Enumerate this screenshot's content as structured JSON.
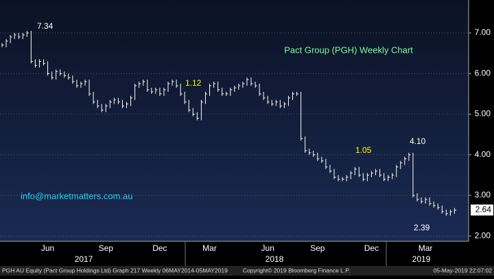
{
  "chart_data": {
    "type": "price-bars",
    "title": "Pact Group (PGH) Weekly Chart",
    "watermark": "info@marketmatters.com.au",
    "categories": [
      null,
      null,
      null,
      null,
      null,
      null,
      null,
      null,
      null,
      null,
      null,
      "Jun",
      null,
      null,
      null,
      null,
      null,
      null,
      null,
      null,
      null,
      null,
      null,
      null,
      null,
      "Sep",
      null,
      null,
      null,
      null,
      null,
      null,
      null,
      null,
      null,
      null,
      null,
      null,
      "Dec",
      null,
      null,
      null,
      null,
      null,
      null,
      null,
      null,
      null,
      null,
      null,
      "Mar",
      null,
      null,
      null,
      null,
      null,
      null,
      null,
      null,
      null,
      null,
      null,
      null,
      null,
      "Jun",
      null,
      null,
      null,
      null,
      null,
      null,
      null,
      null,
      null,
      null,
      null,
      "Sep",
      null,
      null,
      null,
      null,
      null,
      null,
      null,
      null,
      null,
      null,
      null,
      null,
      "Dec",
      null,
      null,
      null,
      null,
      null,
      null,
      null,
      null,
      null,
      null,
      null,
      null,
      "Mar",
      null,
      null,
      null,
      null,
      null,
      null,
      null
    ],
    "years": [
      "2017",
      "2018",
      "2019"
    ],
    "values": [
      6.7,
      6.8,
      6.9,
      6.95,
      6.9,
      6.95,
      7.0,
      6.3,
      6.2,
      6.3,
      6.25,
      6.0,
      5.9,
      6.05,
      6.0,
      5.95,
      5.9,
      5.8,
      5.7,
      5.75,
      5.8,
      5.5,
      5.3,
      5.2,
      5.1,
      5.2,
      5.3,
      5.35,
      5.3,
      5.2,
      5.25,
      5.4,
      5.7,
      5.75,
      5.8,
      5.6,
      5.55,
      5.6,
      5.5,
      5.6,
      5.75,
      5.8,
      5.7,
      5.5,
      5.3,
      5.1,
      5.0,
      4.9,
      5.3,
      5.5,
      5.7,
      5.75,
      5.6,
      5.5,
      5.5,
      5.6,
      5.65,
      5.7,
      5.75,
      5.85,
      5.75,
      5.7,
      5.5,
      5.4,
      5.3,
      5.25,
      5.3,
      5.2,
      5.25,
      5.4,
      5.5,
      5.5,
      4.4,
      4.1,
      4.05,
      4.0,
      3.9,
      3.85,
      3.7,
      3.6,
      3.45,
      3.4,
      3.4,
      3.45,
      3.55,
      3.65,
      3.5,
      3.4,
      3.5,
      3.55,
      3.6,
      3.5,
      3.4,
      3.45,
      3.5,
      3.7,
      3.8,
      3.9,
      4.0,
      3.0,
      2.9,
      2.85,
      2.9,
      2.8,
      2.75,
      2.7,
      2.6,
      2.55,
      2.6,
      2.64
    ],
    "color": "#ffffff",
    "last_price": {
      "value": 2.64,
      "label": "2.64"
    },
    "annotations": [
      {
        "text": "7.34",
        "color": "#ffffff"
      },
      {
        "text": "1.12",
        "color": "#ffff00"
      },
      {
        "text": "1.05",
        "color": "#ffff00"
      },
      {
        "text": "4.10",
        "color": "#ffffff"
      },
      {
        "text": "2.39",
        "color": "#ffffff"
      }
    ],
    "ylim": [
      1.87,
      7.81
    ],
    "yticks": [
      {
        "value": 2,
        "label": "2.00"
      },
      {
        "value": 3,
        "label": "3.00"
      },
      {
        "value": 4,
        "label": "4.00"
      },
      {
        "value": 5,
        "label": "5.00"
      },
      {
        "value": 6,
        "label": "6.00"
      },
      {
        "value": 7,
        "label": "7.00"
      }
    ],
    "grid": true,
    "footer": {
      "left": "PGH AU Equity (Pact Group Holdings Ltd) Graph 217  Weekly 06MAY2014-05MAY2019",
      "center": "Copyright© 2019 Bloomberg Finance L.P.",
      "right": "05-May-2019 22:07:02"
    }
  }
}
